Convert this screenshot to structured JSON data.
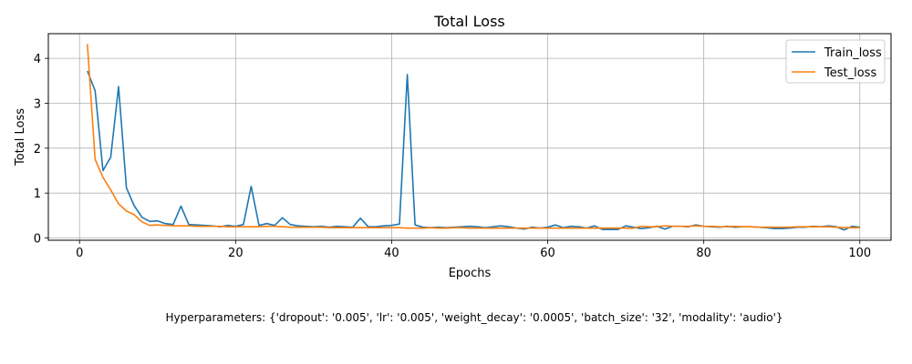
{
  "chart_data": {
    "type": "line",
    "title": "Total Loss",
    "xlabel": "Epochs",
    "ylabel": "Total Loss",
    "xlim": [
      -4,
      104
    ],
    "ylim": [
      -0.05,
      4.55
    ],
    "x_ticks": [
      0,
      20,
      40,
      60,
      80,
      100
    ],
    "y_ticks": [
      0,
      1,
      2,
      3,
      4
    ],
    "grid": true,
    "legend_position": "top-right",
    "x": [
      1,
      2,
      3,
      4,
      5,
      6,
      7,
      8,
      9,
      10,
      11,
      12,
      13,
      14,
      15,
      16,
      17,
      18,
      19,
      20,
      21,
      22,
      23,
      24,
      25,
      26,
      27,
      28,
      29,
      30,
      31,
      32,
      33,
      34,
      35,
      36,
      37,
      38,
      39,
      40,
      41,
      42,
      43,
      44,
      45,
      46,
      47,
      48,
      49,
      50,
      51,
      52,
      53,
      54,
      55,
      56,
      57,
      58,
      59,
      60,
      61,
      62,
      63,
      64,
      65,
      66,
      67,
      68,
      69,
      70,
      71,
      72,
      73,
      74,
      75,
      76,
      77,
      78,
      79,
      80,
      81,
      82,
      83,
      84,
      85,
      86,
      87,
      88,
      89,
      90,
      91,
      92,
      93,
      94,
      95,
      96,
      97,
      98,
      99,
      100
    ],
    "series": [
      {
        "name": "Train_loss",
        "color": "#1f77b4",
        "values": [
          3.72,
          3.28,
          1.5,
          1.8,
          3.37,
          1.12,
          0.72,
          0.46,
          0.37,
          0.38,
          0.32,
          0.3,
          0.71,
          0.3,
          0.29,
          0.28,
          0.27,
          0.25,
          0.28,
          0.26,
          0.3,
          1.15,
          0.28,
          0.32,
          0.28,
          0.45,
          0.3,
          0.27,
          0.26,
          0.25,
          0.26,
          0.24,
          0.26,
          0.25,
          0.24,
          0.44,
          0.25,
          0.25,
          0.27,
          0.28,
          0.31,
          3.64,
          0.29,
          0.24,
          0.23,
          0.24,
          0.23,
          0.24,
          0.25,
          0.26,
          0.25,
          0.23,
          0.25,
          0.27,
          0.25,
          0.22,
          0.2,
          0.24,
          0.22,
          0.24,
          0.29,
          0.23,
          0.26,
          0.25,
          0.22,
          0.27,
          0.19,
          0.19,
          0.19,
          0.27,
          0.24,
          0.21,
          0.23,
          0.26,
          0.2,
          0.26,
          0.26,
          0.25,
          0.29,
          0.26,
          0.25,
          0.24,
          0.26,
          0.24,
          0.25,
          0.25,
          0.24,
          0.23,
          0.21,
          0.21,
          0.22,
          0.24,
          0.24,
          0.26,
          0.25,
          0.27,
          0.25,
          0.18,
          0.26,
          0.24
        ]
      },
      {
        "name": "Test_loss",
        "color": "#ff7f0e",
        "values": [
          4.32,
          1.75,
          1.35,
          1.07,
          0.76,
          0.6,
          0.52,
          0.36,
          0.28,
          0.29,
          0.28,
          0.27,
          0.27,
          0.27,
          0.26,
          0.26,
          0.26,
          0.26,
          0.25,
          0.25,
          0.25,
          0.25,
          0.25,
          0.26,
          0.26,
          0.25,
          0.24,
          0.24,
          0.24,
          0.24,
          0.24,
          0.23,
          0.23,
          0.23,
          0.23,
          0.23,
          0.23,
          0.23,
          0.23,
          0.23,
          0.23,
          0.22,
          0.22,
          0.22,
          0.23,
          0.22,
          0.22,
          0.23,
          0.23,
          0.22,
          0.22,
          0.22,
          0.22,
          0.22,
          0.22,
          0.22,
          0.22,
          0.22,
          0.22,
          0.22,
          0.22,
          0.22,
          0.22,
          0.22,
          0.22,
          0.22,
          0.22,
          0.22,
          0.22,
          0.22,
          0.22,
          0.26,
          0.25,
          0.25,
          0.27,
          0.26,
          0.26,
          0.26,
          0.27,
          0.26,
          0.26,
          0.25,
          0.25,
          0.26,
          0.25,
          0.25,
          0.24,
          0.24,
          0.24,
          0.24,
          0.24,
          0.25,
          0.25,
          0.25,
          0.25,
          0.25,
          0.24,
          0.23,
          0.23,
          0.23
        ]
      }
    ]
  },
  "caption": "Hyperparameters: {'dropout': '0.005', 'lr': '0.005', 'weight_decay': '0.0005', 'batch_size': '32', 'modality': 'audio'}"
}
